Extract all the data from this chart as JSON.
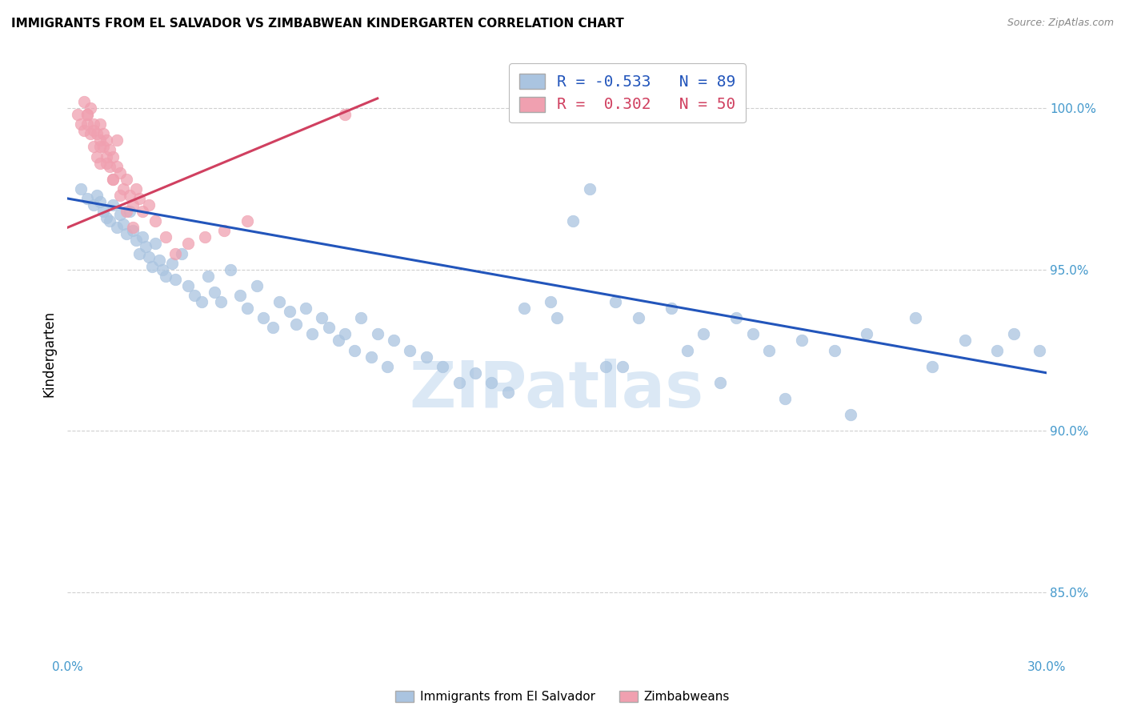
{
  "title": "IMMIGRANTS FROM EL SALVADOR VS ZIMBABWEAN KINDERGARTEN CORRELATION CHART",
  "source": "Source: ZipAtlas.com",
  "ylabel": "Kindergarten",
  "watermark": "ZIPatlas",
  "legend_blue_r": "-0.533",
  "legend_blue_n": "89",
  "legend_pink_r": "0.302",
  "legend_pink_n": "50",
  "blue_color": "#aac4e0",
  "blue_line_color": "#2255bb",
  "pink_color": "#f0a0b0",
  "pink_line_color": "#d04060",
  "blue_scatter_x": [
    0.4,
    0.6,
    0.8,
    0.9,
    1.0,
    1.1,
    1.2,
    1.3,
    1.4,
    1.5,
    1.6,
    1.7,
    1.8,
    1.9,
    2.0,
    2.1,
    2.2,
    2.3,
    2.4,
    2.5,
    2.6,
    2.7,
    2.8,
    2.9,
    3.0,
    3.2,
    3.3,
    3.5,
    3.7,
    3.9,
    4.1,
    4.3,
    4.5,
    4.7,
    5.0,
    5.3,
    5.5,
    5.8,
    6.0,
    6.3,
    6.5,
    6.8,
    7.0,
    7.3,
    7.5,
    7.8,
    8.0,
    8.3,
    8.5,
    8.8,
    9.0,
    9.3,
    9.5,
    9.8,
    10.0,
    10.5,
    11.0,
    11.5,
    12.0,
    12.5,
    13.0,
    13.5,
    14.0,
    14.8,
    15.5,
    16.0,
    16.8,
    17.5,
    18.5,
    19.5,
    20.5,
    21.5,
    22.5,
    15.0,
    17.0,
    19.0,
    21.0,
    23.5,
    24.5,
    26.0,
    27.5,
    29.0,
    29.8,
    16.5,
    20.0,
    22.0,
    24.0,
    26.5,
    28.5
  ],
  "blue_scatter_y": [
    97.5,
    97.2,
    97.0,
    97.3,
    97.1,
    96.8,
    96.6,
    96.5,
    97.0,
    96.3,
    96.7,
    96.4,
    96.1,
    96.8,
    96.2,
    95.9,
    95.5,
    96.0,
    95.7,
    95.4,
    95.1,
    95.8,
    95.3,
    95.0,
    94.8,
    95.2,
    94.7,
    95.5,
    94.5,
    94.2,
    94.0,
    94.8,
    94.3,
    94.0,
    95.0,
    94.2,
    93.8,
    94.5,
    93.5,
    93.2,
    94.0,
    93.7,
    93.3,
    93.8,
    93.0,
    93.5,
    93.2,
    92.8,
    93.0,
    92.5,
    93.5,
    92.3,
    93.0,
    92.0,
    92.8,
    92.5,
    92.3,
    92.0,
    91.5,
    91.8,
    91.5,
    91.2,
    93.8,
    94.0,
    96.5,
    97.5,
    94.0,
    93.5,
    93.8,
    93.0,
    93.5,
    92.5,
    92.8,
    93.5,
    92.0,
    92.5,
    93.0,
    92.5,
    93.0,
    93.5,
    92.8,
    93.0,
    92.5,
    92.0,
    91.5,
    91.0,
    90.5,
    92.0,
    92.5
  ],
  "pink_scatter_x": [
    0.3,
    0.4,
    0.5,
    0.5,
    0.6,
    0.6,
    0.7,
    0.7,
    0.8,
    0.8,
    0.9,
    0.9,
    1.0,
    1.0,
    1.0,
    1.1,
    1.1,
    1.2,
    1.2,
    1.3,
    1.3,
    1.4,
    1.4,
    1.5,
    1.5,
    1.6,
    1.7,
    1.8,
    1.9,
    2.0,
    2.1,
    2.2,
    2.3,
    2.5,
    2.7,
    3.0,
    3.3,
    3.7,
    4.2,
    4.8,
    5.5,
    0.6,
    0.8,
    1.0,
    1.2,
    1.4,
    1.6,
    1.8,
    2.0,
    8.5
  ],
  "pink_scatter_y": [
    99.8,
    99.5,
    100.2,
    99.3,
    99.5,
    99.8,
    99.2,
    100.0,
    99.5,
    98.8,
    99.2,
    98.5,
    99.0,
    98.3,
    99.5,
    98.8,
    99.2,
    98.5,
    99.0,
    98.2,
    98.7,
    97.8,
    98.5,
    98.2,
    99.0,
    98.0,
    97.5,
    97.8,
    97.3,
    97.0,
    97.5,
    97.2,
    96.8,
    97.0,
    96.5,
    96.0,
    95.5,
    95.8,
    96.0,
    96.2,
    96.5,
    99.8,
    99.3,
    98.8,
    98.3,
    97.8,
    97.3,
    96.8,
    96.3,
    99.8
  ],
  "blue_trend_x": [
    0.0,
    30.0
  ],
  "blue_trend_y": [
    97.2,
    91.8
  ],
  "pink_trend_x": [
    0.0,
    9.5
  ],
  "pink_trend_y": [
    96.3,
    100.3
  ],
  "xmin": 0.0,
  "xmax": 30.0,
  "ymin": 83.0,
  "ymax": 101.8,
  "yticks": [
    85.0,
    90.0,
    95.0,
    100.0
  ],
  "xtick_positions": [
    0,
    5,
    10,
    15,
    20,
    25,
    30
  ],
  "background_color": "#ffffff",
  "grid_color": "#d0d0d0",
  "tick_label_color": "#4499cc",
  "legend_label1": "Immigrants from El Salvador",
  "legend_label2": "Zimbabweans"
}
